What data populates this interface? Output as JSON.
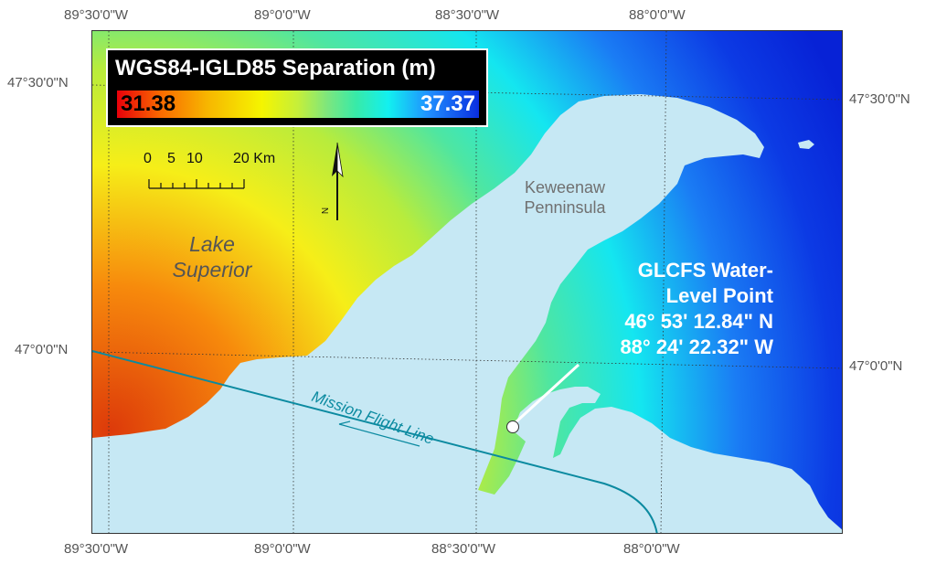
{
  "title": "WGS84-IGLD85 Separation (m)",
  "colorbar": {
    "min_label": "31.38",
    "max_label": "37.37",
    "min_color": "#e8000a",
    "max_color": "#0a2ee0"
  },
  "axes": {
    "top_ticks": [
      "89°30'0\"W",
      "89°0'0\"W",
      "88°30'0\"W",
      "88°0'0\"W"
    ],
    "bottom_ticks": [
      "89°30'0\"W",
      "89°0'0\"W",
      "88°30'0\"W",
      "88°0'0\"W"
    ],
    "left_ticks": [
      "47°30'0\"N",
      "47°0'0\"N"
    ],
    "right_ticks": [
      "47°30'0\"N",
      "47°0'0\"N"
    ]
  },
  "scale_bar": {
    "labels": [
      "0",
      "5",
      "10",
      "20 Km"
    ]
  },
  "north_arrow": {
    "label": "N"
  },
  "labels": {
    "lake_line1": "Lake",
    "lake_line2": "Superior",
    "peninsula_line1": "Keweenaw",
    "peninsula_line2": "Penninsula",
    "flight_line": "Mission Flight Line"
  },
  "point": {
    "line1": "GLCFS Water-",
    "line2": "Level Point",
    "lat": "46° 53' 12.84\" N",
    "lon": "88° 24' 22.32\" W"
  },
  "colors": {
    "land": "#c6e8f4",
    "flight_line": "#0b8aa0",
    "graticule": "#333333"
  }
}
